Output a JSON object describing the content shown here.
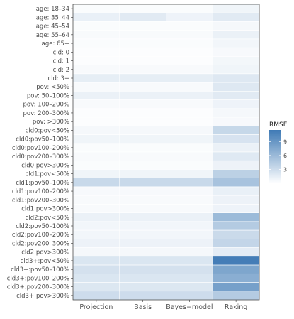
{
  "chart_data": {
    "type": "heatmap",
    "title": "",
    "xlabel": "",
    "ylabel": "",
    "x_categories": [
      "Projection",
      "Basis",
      "Bayes−model",
      "Raking"
    ],
    "y_categories": [
      "age: 18–34",
      "age: 35–44",
      "age: 45–54",
      "age: 55–64",
      "age: 65+",
      "cld: 0",
      "cld: 1",
      "cld: 2",
      "cld: 3+",
      "pov: <50%",
      "pov: 50–100%",
      "pov: 100–200%",
      "pov: 200–300%",
      "pov: >300%",
      "cld0:pov<50%",
      "cld0:pov50–100%",
      "cld0:pov100–200%",
      "cld0:pov200–300%",
      "cld0:pov>300%",
      "cld1:pov<50%",
      "cld1:pov50–100%",
      "cld1:pov100–200%",
      "cld1:pov200–300%",
      "cld1:pov>300%",
      "cld2:pov<50%",
      "cld2:pov50–100%",
      "cld2:pov100–200%",
      "cld2:pov200–300%",
      "cld2:pov>300%",
      "cld3+:pov<50%",
      "cld3+:pov50–100%",
      "cld3+:pov100–200%",
      "cld3+:pov200–300%",
      "cld3+:pov>300%"
    ],
    "values": [
      [
        0.3,
        0.3,
        0.3,
        0.9
      ],
      [
        1.3,
        1.8,
        1.0,
        1.8
      ],
      [
        0.3,
        0.3,
        0.3,
        0.6
      ],
      [
        0.4,
        0.4,
        0.4,
        1.2
      ],
      [
        0.3,
        0.3,
        0.3,
        0.8
      ],
      [
        0.2,
        0.2,
        0.2,
        0.5
      ],
      [
        0.2,
        0.2,
        0.2,
        0.7
      ],
      [
        0.4,
        0.4,
        0.4,
        0.9
      ],
      [
        1.5,
        1.5,
        1.5,
        2.0
      ],
      [
        0.4,
        0.4,
        0.4,
        2.0
      ],
      [
        1.2,
        1.2,
        1.2,
        1.8
      ],
      [
        0.4,
        0.4,
        0.4,
        1.0
      ],
      [
        0.2,
        0.2,
        0.2,
        0.6
      ],
      [
        0.2,
        0.2,
        0.2,
        0.5
      ],
      [
        0.6,
        0.6,
        0.6,
        3.4
      ],
      [
        0.9,
        0.9,
        0.9,
        2.4
      ],
      [
        0.3,
        0.3,
        0.3,
        1.2
      ],
      [
        0.4,
        0.4,
        0.4,
        1.9
      ],
      [
        0.3,
        0.3,
        0.3,
        1.1
      ],
      [
        0.9,
        0.9,
        0.9,
        4.0
      ],
      [
        3.3,
        3.3,
        3.3,
        5.2
      ],
      [
        0.5,
        0.5,
        0.5,
        1.3
      ],
      [
        0.4,
        0.4,
        0.4,
        1.1
      ],
      [
        0.4,
        0.4,
        0.4,
        1.0
      ],
      [
        1.2,
        1.2,
        1.2,
        5.9
      ],
      [
        0.8,
        0.8,
        0.8,
        4.5
      ],
      [
        0.8,
        0.8,
        0.8,
        3.2
      ],
      [
        1.1,
        1.1,
        1.1,
        3.6
      ],
      [
        0.6,
        0.6,
        0.6,
        1.6
      ],
      [
        2.2,
        2.2,
        2.2,
        11.2
      ],
      [
        2.6,
        2.6,
        2.6,
        7.7
      ],
      [
        2.2,
        2.2,
        2.2,
        7.0
      ],
      [
        2.1,
        2.1,
        2.1,
        8.2
      ],
      [
        3.0,
        3.0,
        3.0,
        4.5
      ]
    ],
    "legend": {
      "title": "RMSE",
      "ticks": [
        3,
        6,
        9
      ],
      "range": [
        0,
        11.5
      ],
      "low_color": "#ffffff",
      "high_color": "#3f7ab5",
      "placement": "right"
    },
    "grid": false
  }
}
